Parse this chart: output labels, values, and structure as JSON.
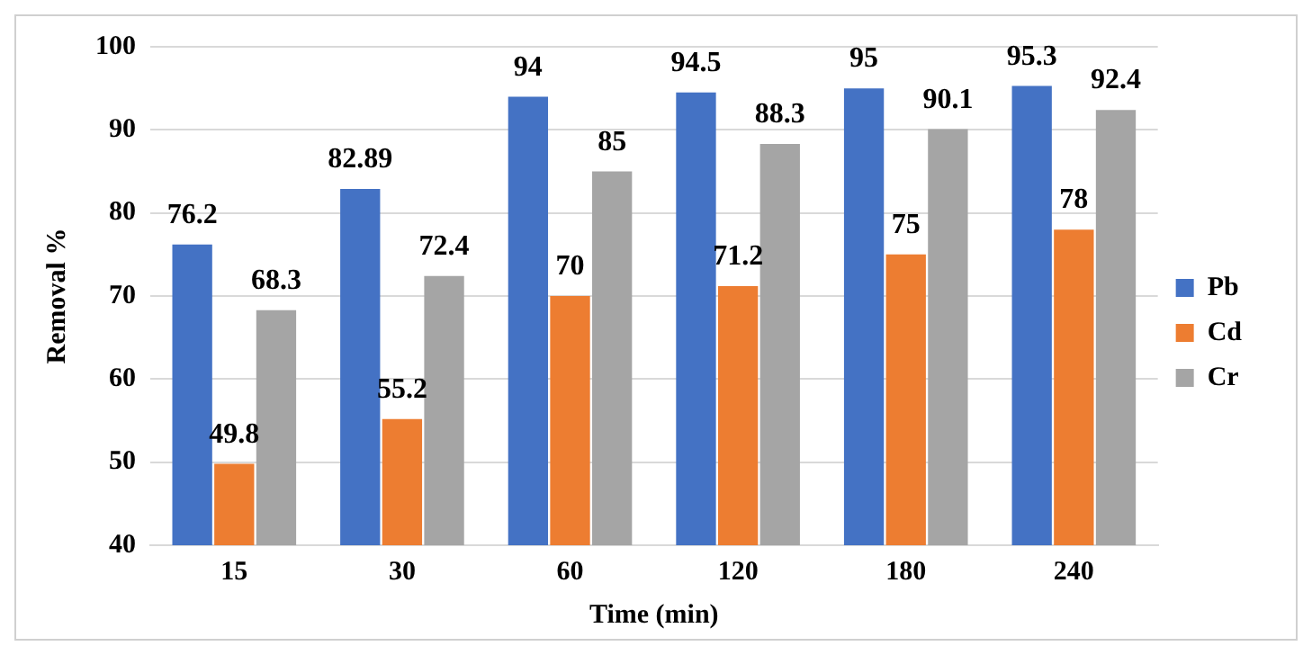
{
  "chart_data": {
    "type": "bar",
    "xlabel": "Time (min)",
    "ylabel": "Removal %",
    "categories": [
      "15",
      "30",
      "60",
      "120",
      "180",
      "240"
    ],
    "series": [
      {
        "name": "Pb",
        "color": "#4472c4",
        "values": [
          76.2,
          82.89,
          94,
          94.5,
          95,
          95.3
        ]
      },
      {
        "name": "Cd",
        "color": "#ed7d31",
        "values": [
          49.8,
          55.2,
          70,
          71.2,
          75,
          78
        ]
      },
      {
        "name": "Cr",
        "color": "#a5a5a5",
        "values": [
          68.3,
          72.4,
          85,
          88.3,
          90.1,
          92.4
        ]
      }
    ],
    "ylim": [
      40,
      100
    ],
    "yticks": [
      40,
      50,
      60,
      70,
      80,
      90,
      100
    ],
    "grid": "y",
    "legend": "right",
    "data_labels": true
  }
}
